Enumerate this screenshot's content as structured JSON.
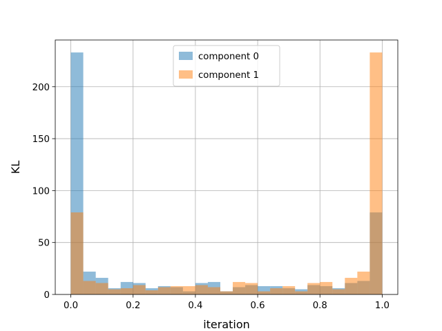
{
  "chart_data": {
    "type": "histogram",
    "xlabel": "iteration",
    "ylabel": "KL",
    "xlim": [
      -0.05,
      1.05
    ],
    "ylim": [
      0,
      245
    ],
    "grid": true,
    "legend_position": "top-center",
    "bins": 25,
    "bin_range": [
      0.0,
      1.0
    ],
    "x_ticks": [
      "0.0",
      "0.2",
      "0.4",
      "0.6",
      "0.8",
      "1.0"
    ],
    "x_tick_values": [
      0.0,
      0.2,
      0.4,
      0.6,
      0.8,
      1.0
    ],
    "y_ticks": [
      "0",
      "50",
      "100",
      "150",
      "200"
    ],
    "y_tick_values": [
      0,
      50,
      100,
      150,
      200
    ],
    "overlay_color": "#b0895c",
    "series": [
      {
        "name": "component 0",
        "color": "#1f77b4",
        "alpha": 0.5,
        "values": [
          233,
          22,
          16,
          6,
          12,
          11,
          6,
          8,
          7,
          3,
          11,
          12,
          3,
          7,
          9,
          8,
          8,
          6,
          5,
          9,
          8,
          6,
          11,
          13,
          79
        ]
      },
      {
        "name": "component 1",
        "color": "#ff7f0e",
        "alpha": 0.5,
        "values": [
          79,
          13,
          11,
          5,
          6,
          9,
          4,
          7,
          8,
          8,
          9,
          7,
          3,
          12,
          11,
          3,
          6,
          8,
          3,
          11,
          12,
          5,
          16,
          22,
          233
        ]
      }
    ]
  }
}
